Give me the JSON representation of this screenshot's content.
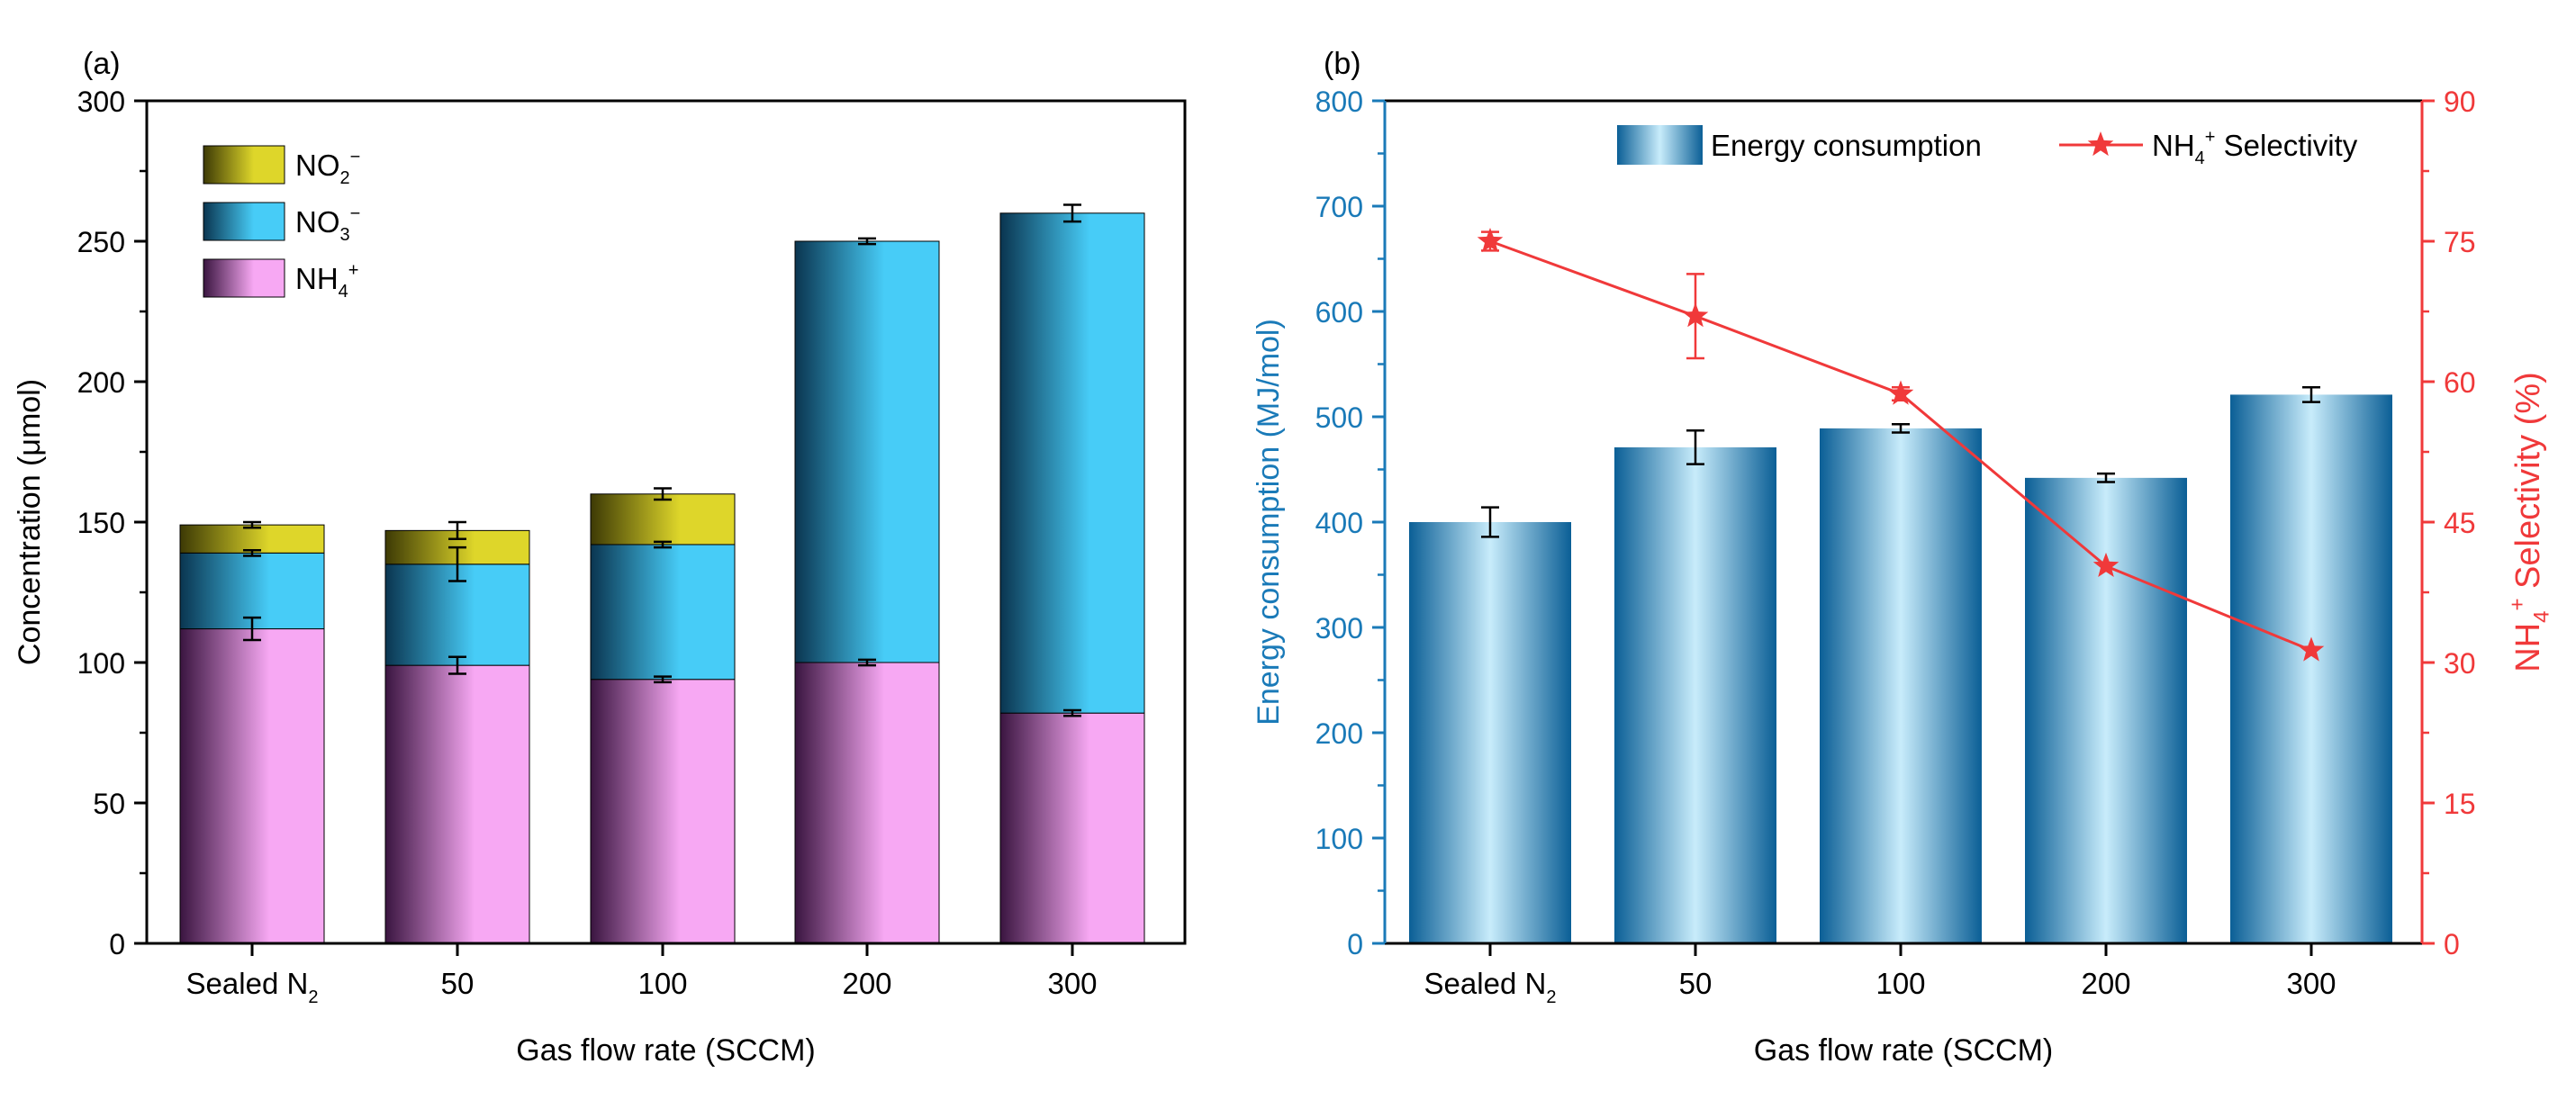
{
  "chart_data": [
    {
      "id": "a",
      "panel_label": "(a)",
      "type": "bar",
      "stacked": true,
      "categories": [
        "Sealed N2",
        "50",
        "100",
        "200",
        "300"
      ],
      "category_labels": [
        {
          "main": "Sealed N",
          "sub": "2"
        },
        {
          "main": "50",
          "sub": ""
        },
        {
          "main": "100",
          "sub": ""
        },
        {
          "main": "200",
          "sub": ""
        },
        {
          "main": "300",
          "sub": ""
        }
      ],
      "xlabel": "Gas flow rate (SCCM)",
      "ylabel": "Concentration (μmol)",
      "ylim": [
        0,
        300
      ],
      "yticks": [
        0,
        50,
        100,
        150,
        200,
        250,
        300
      ],
      "series": [
        {
          "name": "NH4+",
          "label": {
            "base": "NH",
            "sub": "4",
            "sup": "+"
          },
          "color": "#f7a8f3",
          "dark": "#3a1540",
          "values": [
            112,
            99,
            94,
            100,
            82
          ],
          "errors": [
            4,
            3,
            1,
            1,
            1
          ]
        },
        {
          "name": "NO3-",
          "label": {
            "base": "NO",
            "sub": "3",
            "sup": "−"
          },
          "color": "#47ccf7",
          "dark": "#0a3550",
          "values": [
            27,
            36,
            48,
            150,
            178
          ],
          "errors": [
            1,
            6,
            1,
            1,
            3
          ]
        },
        {
          "name": "NO2-",
          "label": {
            "base": "NO",
            "sub": "2",
            "sup": "−"
          },
          "color": "#ded62a",
          "dark": "#3d3a05",
          "values": [
            10,
            12,
            18,
            0,
            0
          ],
          "errors": [
            1,
            3,
            2,
            0,
            0
          ]
        }
      ],
      "legend_order": [
        2,
        1,
        0
      ],
      "legend_position": "top-left"
    },
    {
      "id": "b",
      "panel_label": "(b)",
      "type": "bar+line",
      "categories": [
        "Sealed N2",
        "50",
        "100",
        "200",
        "300"
      ],
      "category_labels": [
        {
          "main": "Sealed N",
          "sub": "2"
        },
        {
          "main": "50",
          "sub": ""
        },
        {
          "main": "100",
          "sub": ""
        },
        {
          "main": "200",
          "sub": ""
        },
        {
          "main": "300",
          "sub": ""
        }
      ],
      "xlabel": "Gas flow rate (SCCM)",
      "ylabel_left": "Energy consumption (MJ/mol)",
      "ylabel_right": {
        "base": "NH",
        "sub": "4",
        "sup": "+",
        "rest": " Selectivity (%)"
      },
      "ylim_left": [
        0,
        800
      ],
      "yticks_left": [
        0,
        100,
        200,
        300,
        400,
        500,
        600,
        700,
        800
      ],
      "ylim_right": [
        0,
        90
      ],
      "yticks_right": [
        0,
        15,
        30,
        45,
        60,
        75,
        90
      ],
      "left_axis_color": "#1a7ab8",
      "right_axis_color": "#f0393a",
      "bars": {
        "name": "Energy consumption",
        "color_light": "#c8ecfb",
        "color_dark": "#0b5f96",
        "values": [
          400,
          471,
          489,
          442,
          521
        ],
        "errors": [
          14,
          16,
          4,
          4,
          7
        ]
      },
      "line": {
        "name": "NH4+ Selectivity",
        "label": {
          "base": "NH",
          "sub": "4",
          "sup": "+",
          "rest": " Selectivity"
        },
        "color": "#f0393a",
        "marker": "star",
        "values": [
          75,
          67,
          58.7,
          40.3,
          31.3
        ],
        "errors": [
          1,
          4.5,
          0.7,
          0,
          0
        ]
      },
      "legend_position": "top"
    }
  ]
}
